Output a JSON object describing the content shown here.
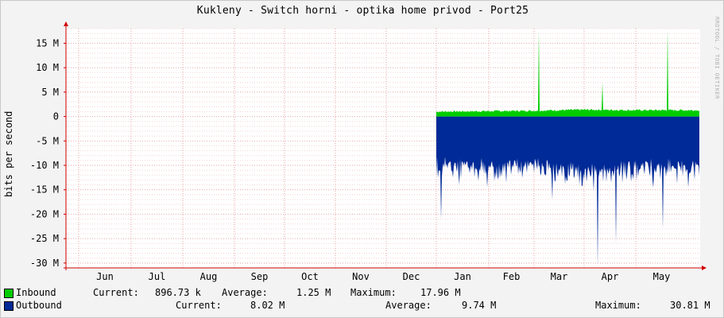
{
  "title": "Kukleny - Switch horni - optika home privod - Port25",
  "watermark": "RRDTOOL / TOBI OETIKER",
  "chart_data": {
    "type": "area",
    "ylabel": "bits per second",
    "ylim": [
      -31000000,
      18000000
    ],
    "y_ticks": [
      {
        "value": 15000000,
        "label": "15 M"
      },
      {
        "value": 10000000,
        "label": "10 M"
      },
      {
        "value": 5000000,
        "label": "5 M"
      },
      {
        "value": 0,
        "label": "0"
      },
      {
        "value": -5000000,
        "label": "-5 M"
      },
      {
        "value": -10000000,
        "label": "-10 M"
      },
      {
        "value": -15000000,
        "label": "-15 M"
      },
      {
        "value": -20000000,
        "label": "-20 M"
      },
      {
        "value": -25000000,
        "label": "-25 M"
      },
      {
        "value": -30000000,
        "label": "-30 M"
      }
    ],
    "x_ticks": [
      "Jun",
      "Jul",
      "Aug",
      "Sep",
      "Oct",
      "Nov",
      "Dec",
      "Jan",
      "Feb",
      "Mar",
      "Apr",
      "May"
    ],
    "grid": true,
    "series": [
      {
        "name": "Inbound",
        "color": "#00cc00",
        "months": [
          "Jan",
          "Feb",
          "Mar",
          "Apr",
          "May"
        ],
        "values": [
          1000000,
          1100000,
          1200000,
          1400000,
          1300000
        ],
        "spikes": [
          {
            "month": "Mar",
            "value": 17500000
          },
          {
            "month": "Apr",
            "value": 7000000
          },
          {
            "month": "May",
            "value": 17960000
          }
        ]
      },
      {
        "name": "Outbound",
        "color": "#002a97",
        "months": [
          "Jan",
          "Feb",
          "Mar",
          "Apr",
          "May"
        ],
        "values": [
          -9000000,
          -9500000,
          -9000000,
          -10500000,
          -9500000
        ],
        "spikes": [
          {
            "month": "Jan",
            "value": -21000000
          },
          {
            "month": "Mar",
            "value": -17000000
          },
          {
            "month": "Apr",
            "value": -26000000
          },
          {
            "month": "Apr",
            "value": -30810000
          },
          {
            "month": "May",
            "value": -23000000
          }
        ]
      }
    ]
  },
  "legend": {
    "inbound": {
      "label": "Inbound",
      "current_label": "Current:",
      "current": "896.73 k",
      "average_label": "Average:",
      "average": "1.25 M",
      "maximum_label": "Maximum:",
      "maximum": "17.96 M"
    },
    "outbound": {
      "label": "Outbound",
      "current_label": "Current:",
      "current": "8.02 M",
      "average_label": "Average:",
      "average": "9.74 M",
      "maximum_label": "Maximum:",
      "maximum": "30.81 M"
    }
  }
}
